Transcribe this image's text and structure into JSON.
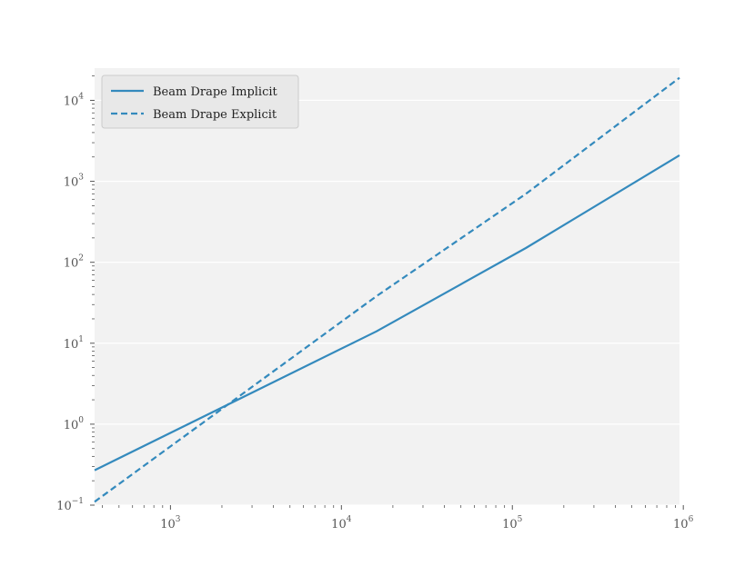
{
  "chart_data": {
    "type": "line",
    "title": "",
    "xlabel": "",
    "ylabel": "",
    "x_scale": "log",
    "y_scale": "log",
    "xlim": [
      360,
      950000
    ],
    "ylim": [
      0.1,
      25000
    ],
    "x_ticks": [
      {
        "value": 1000,
        "base": "10",
        "exp": "3"
      },
      {
        "value": 10000,
        "base": "10",
        "exp": "4"
      },
      {
        "value": 100000,
        "base": "10",
        "exp": "5"
      },
      {
        "value": 1000000,
        "base": "10",
        "exp": "6"
      }
    ],
    "y_ticks": [
      {
        "value": 0.1,
        "base": "10",
        "exp": "−1"
      },
      {
        "value": 1,
        "base": "10",
        "exp": "0"
      },
      {
        "value": 10,
        "base": "10",
        "exp": "1"
      },
      {
        "value": 100,
        "base": "10",
        "exp": "2"
      },
      {
        "value": 1000,
        "base": "10",
        "exp": "3"
      },
      {
        "value": 10000,
        "base": "10",
        "exp": "4"
      }
    ],
    "grid": true,
    "legend_position": "top-left",
    "colors": {
      "series": "#348abd",
      "plot_bg": "#f2f2f2",
      "grid": "#ffffff",
      "tick": "#555555"
    },
    "series": [
      {
        "name": "Beam Drape Implicit",
        "style": "solid",
        "x": [
          360,
          16000,
          120000,
          950000
        ],
        "y": [
          0.27,
          14,
          150,
          2100
        ]
      },
      {
        "name": "Beam Drape Explicit",
        "style": "dashed",
        "x": [
          360,
          16000,
          120000,
          950000
        ],
        "y": [
          0.11,
          38,
          700,
          19000
        ]
      }
    ]
  }
}
